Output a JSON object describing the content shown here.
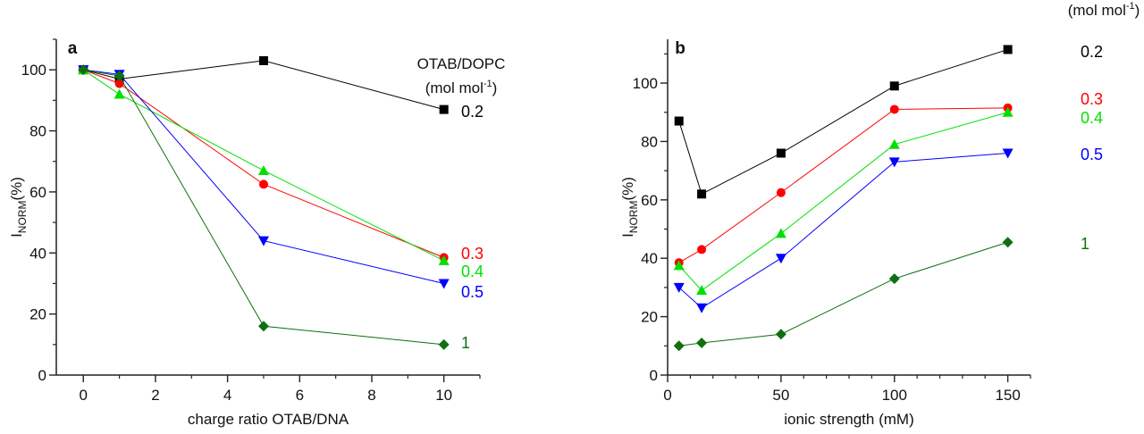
{
  "chart_data": [
    {
      "type": "line",
      "panel_label": "a",
      "xlabel": "charge ratio OTAB/DNA",
      "ylabel_main": "I",
      "ylabel_sub": "NORM",
      "ylabel_suffix": "(%)",
      "xlim": [
        -0.75,
        11
      ],
      "ylim": [
        0,
        110
      ],
      "xticks": [
        0,
        2,
        4,
        6,
        8,
        10
      ],
      "yticks": [
        0,
        20,
        40,
        60,
        80,
        100
      ],
      "grid": false,
      "legend_title": "OTAB/DOPC",
      "legend_unit": "(mol mol",
      "legend_unit_sup": "-1",
      "legend_unit_close": ")",
      "x": [
        0,
        1,
        5,
        10
      ],
      "series": [
        {
          "name": "0.2",
          "color": "#000000",
          "marker": "square",
          "values": [
            100,
            97,
            103,
            87
          ]
        },
        {
          "name": "0.3",
          "color": "#ff0000",
          "marker": "circle",
          "values": [
            100,
            95.5,
            62.5,
            38.5
          ]
        },
        {
          "name": "0.4",
          "color": "#00e000",
          "marker": "triangle-up",
          "values": [
            100,
            92,
            67,
            37.5
          ]
        },
        {
          "name": "0.5",
          "color": "#0000ff",
          "marker": "triangle-down",
          "values": [
            100,
            98.5,
            44,
            30
          ]
        },
        {
          "name": "1",
          "color": "#107010",
          "marker": "diamond",
          "values": [
            100,
            98,
            16,
            10
          ]
        }
      ]
    },
    {
      "type": "line",
      "panel_label": "b",
      "xlabel": "ionic strength (mM)",
      "ylabel_main": "I",
      "ylabel_sub": "NORM",
      "ylabel_suffix": "(%)",
      "xlim": [
        0,
        160
      ],
      "ylim": [
        0,
        115
      ],
      "xticks": [
        0,
        50,
        100,
        150
      ],
      "yticks": [
        0,
        20,
        40,
        60,
        80,
        100
      ],
      "grid": false,
      "legend_title": "OTAB/DOPC",
      "legend_unit": "(mol mol",
      "legend_unit_sup": "-1",
      "legend_unit_close": ")",
      "x": [
        5,
        15,
        50,
        100,
        150
      ],
      "series": [
        {
          "name": "0.2",
          "color": "#000000",
          "marker": "square",
          "values": [
            87,
            62,
            76,
            99,
            111.5
          ]
        },
        {
          "name": "0.3",
          "color": "#ff0000",
          "marker": "circle",
          "values": [
            38.5,
            43,
            62.5,
            91,
            91.5
          ]
        },
        {
          "name": "0.4",
          "color": "#00e000",
          "marker": "triangle-up",
          "values": [
            37.5,
            29,
            48.5,
            79,
            90
          ]
        },
        {
          "name": "0.5",
          "color": "#0000ff",
          "marker": "triangle-down",
          "values": [
            30,
            23,
            40,
            73,
            76
          ]
        },
        {
          "name": "1",
          "color": "#107010",
          "marker": "diamond",
          "values": [
            10,
            11,
            14,
            33,
            45.5
          ]
        }
      ]
    }
  ]
}
